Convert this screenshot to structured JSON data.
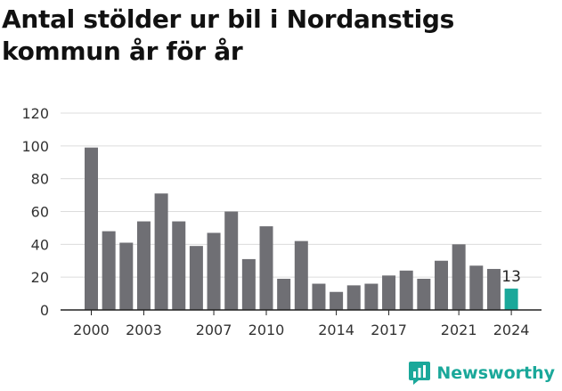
{
  "colors": {
    "bar": "#6f6f74",
    "highlight": "#1aa89a",
    "grid": "#dcdcdc",
    "axis": "#222222",
    "brand": "#1aa89a"
  },
  "chart_data": {
    "type": "bar",
    "title": "Antal stölder ur bil i Nordanstigs kommun år för år",
    "xlabel": "",
    "ylabel": "",
    "ylim": [
      0,
      120
    ],
    "yticks": [
      0,
      20,
      40,
      60,
      80,
      100,
      120
    ],
    "grid": true,
    "categories": [
      2000,
      2001,
      2002,
      2003,
      2004,
      2005,
      2006,
      2007,
      2008,
      2009,
      2010,
      2011,
      2012,
      2013,
      2014,
      2015,
      2016,
      2017,
      2018,
      2019,
      2020,
      2021,
      2022,
      2023,
      2024
    ],
    "values": [
      99,
      48,
      41,
      54,
      71,
      54,
      39,
      47,
      60,
      31,
      51,
      19,
      42,
      16,
      11,
      15,
      16,
      21,
      24,
      19,
      30,
      40,
      27,
      25,
      13
    ],
    "xticks_shown": [
      2000,
      2003,
      2007,
      2010,
      2014,
      2017,
      2021,
      2024
    ],
    "highlight_category": 2024,
    "annotation": {
      "category": 2024,
      "text": "13"
    }
  },
  "branding": {
    "logo_text": "Newsworthy",
    "icon": "bar-chart-speech-bubble-icon"
  }
}
